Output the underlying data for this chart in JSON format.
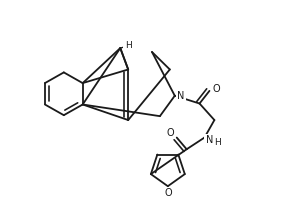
{
  "bg_color": "#ffffff",
  "line_color": "#1a1a1a",
  "line_width": 1.3,
  "figsize": [
    3.0,
    2.0
  ],
  "dpi": 100,
  "xlim": [
    0,
    300
  ],
  "ylim": [
    0,
    200
  ]
}
